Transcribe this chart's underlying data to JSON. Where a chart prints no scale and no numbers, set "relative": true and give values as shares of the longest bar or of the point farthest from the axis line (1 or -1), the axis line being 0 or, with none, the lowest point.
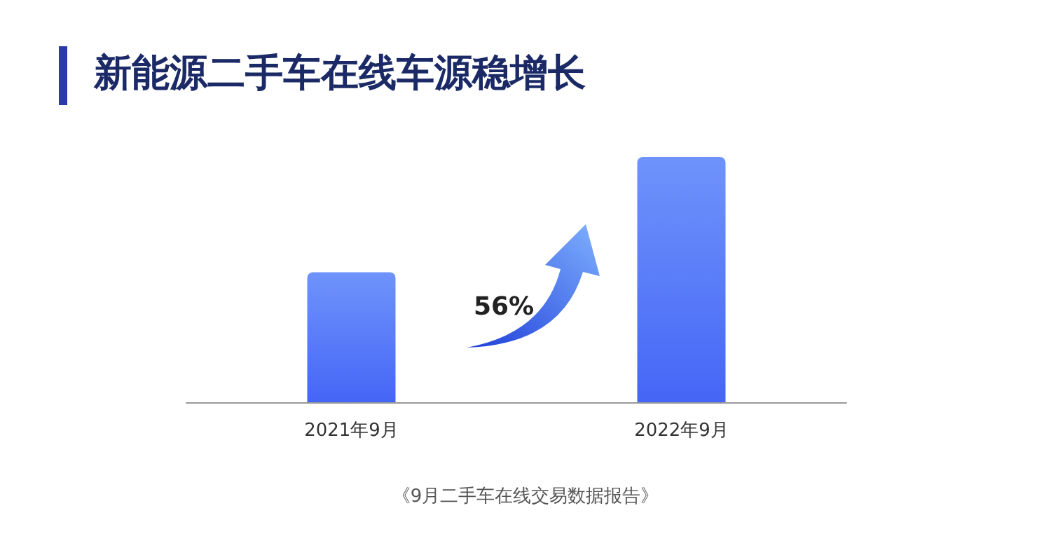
{
  "chart_data": {
    "type": "bar",
    "title": "新能源二手车在线车源稳增长",
    "categories": [
      "2021年9月",
      "2022年9月"
    ],
    "values": [
      0.53,
      1
    ],
    "color": "#4566f6",
    "relative": true,
    "annotations": [
      "56%",
      "《9月二手车在线交易数据报告》"
    ]
  }
}
